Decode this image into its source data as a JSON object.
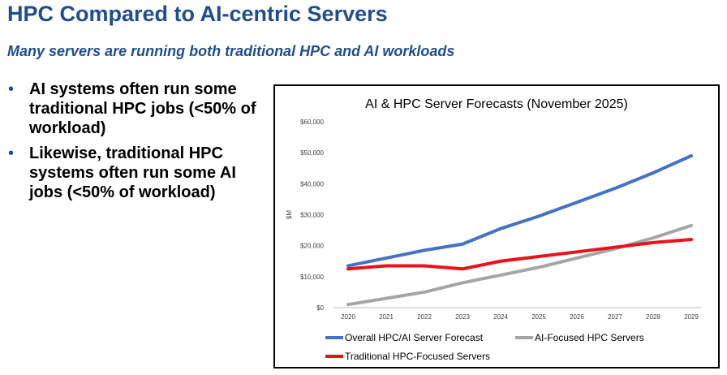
{
  "slide": {
    "title": "HPC Compared to AI-centric Servers",
    "subtitle": "Many servers are running both traditional HPC and AI workloads",
    "bullet_symbol": "•",
    "bullets": [
      "AI systems often run some traditional HPC jobs (<50% of workload)",
      "Likewise, traditional HPC systems often run some AI jobs (<50% of workload)"
    ]
  },
  "chart_data": {
    "type": "line",
    "title": "AI & HPC Server Forecasts (November 2025)",
    "xlabel": "",
    "ylabel": "$M",
    "ylim": [
      0,
      60000
    ],
    "yticks": [
      "$0",
      "$10,000",
      "$20,000",
      "$30,000",
      "$40,000",
      "$50,000",
      "$60,000"
    ],
    "categories": [
      "2020",
      "2021",
      "2022",
      "2023",
      "2024",
      "2025",
      "2026",
      "2027",
      "2028",
      "2029"
    ],
    "grid": false,
    "legend_position": "bottom",
    "series": [
      {
        "name": "Overall HPC/AI Server Forecast",
        "color": "#4472c4",
        "values": [
          13500,
          16000,
          18500,
          20500,
          25500,
          29500,
          34000,
          38500,
          43500,
          49000
        ]
      },
      {
        "name": "AI-Focused HPC Servers",
        "color": "#a5a5a5",
        "values": [
          1000,
          3000,
          5000,
          8000,
          10500,
          13000,
          16000,
          19000,
          22500,
          26500
        ]
      },
      {
        "name": "Traditional HPC-Focused Servers",
        "color": "#e8141c",
        "values": [
          12500,
          13500,
          13500,
          12500,
          15000,
          16500,
          18000,
          19500,
          21000,
          22000
        ]
      }
    ]
  }
}
